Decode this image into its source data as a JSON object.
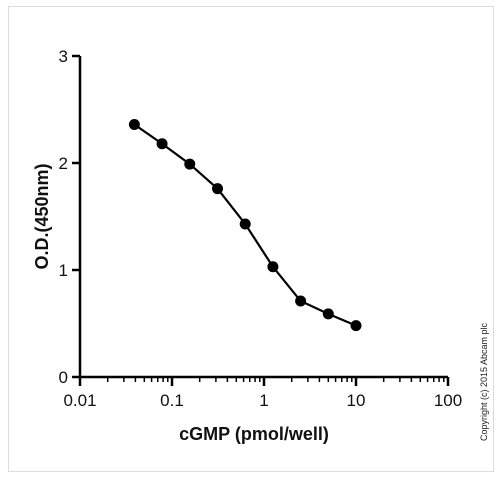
{
  "chart_data": {
    "type": "line",
    "xlabel": "cGMP (pmol/well)",
    "ylabel": "O.D.(450nm)",
    "x_scale": "log",
    "xlim": [
      0.01,
      100
    ],
    "ylim": [
      0,
      3
    ],
    "x_ticks": [
      0.01,
      0.1,
      1,
      10,
      100
    ],
    "x_tick_labels": [
      "0.01",
      "0.1",
      "1",
      "10",
      "100"
    ],
    "y_ticks": [
      0,
      1,
      2,
      3
    ],
    "y_tick_labels": [
      "0",
      "1",
      "2",
      "3"
    ],
    "grid": false,
    "series": [
      {
        "x": [
          0.039,
          0.078,
          0.156,
          0.3125,
          0.625,
          1.25,
          2.5,
          5,
          10
        ],
        "y": [
          2.36,
          2.18,
          1.99,
          1.76,
          1.43,
          1.03,
          0.71,
          0.59,
          0.48
        ],
        "color": "#000000"
      }
    ]
  },
  "copyright": "Copyright (c) 2015 Abcam plc"
}
